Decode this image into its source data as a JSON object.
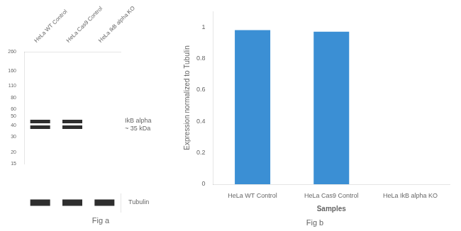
{
  "chart_data": [
    {
      "type": "blot",
      "title": "Fig a",
      "categories": [
        "HeLa WT Control",
        "HeLa Cas9 Control",
        "HeLa IkB alpha KO"
      ],
      "log": "y",
      "ylim": [
        15,
        260
      ],
      "yticks": [
        260,
        160,
        110,
        80,
        60,
        50,
        40,
        30,
        20,
        15
      ],
      "grid": false,
      "series": [
        {
          "name": "IkB alpha\n~ 35 kDa",
          "color": "#2e2e2e",
          "values": [
            [
              44,
              38
            ],
            [
              44,
              38
            ],
            []
          ]
        },
        {
          "name": "Tubulin",
          "color": "#2e2e2e",
          "values": [
            true,
            true,
            true
          ]
        }
      ]
    },
    {
      "type": "bar",
      "title": "Fig b",
      "categories": [
        "HeLa WT Control",
        "HeLa Cas9 Control",
        "HeLa IkB alpha KO"
      ],
      "values": [
        0.98,
        0.97,
        0.0
      ],
      "color": "#3b8fd4",
      "xlabel": "Samples",
      "ylabel": "Expression normalized to Tubulin",
      "ylim": [
        0,
        1.1
      ],
      "yticks": [
        0,
        0.2,
        0.4,
        0.6,
        0.8,
        1.0
      ],
      "grid": false
    }
  ]
}
